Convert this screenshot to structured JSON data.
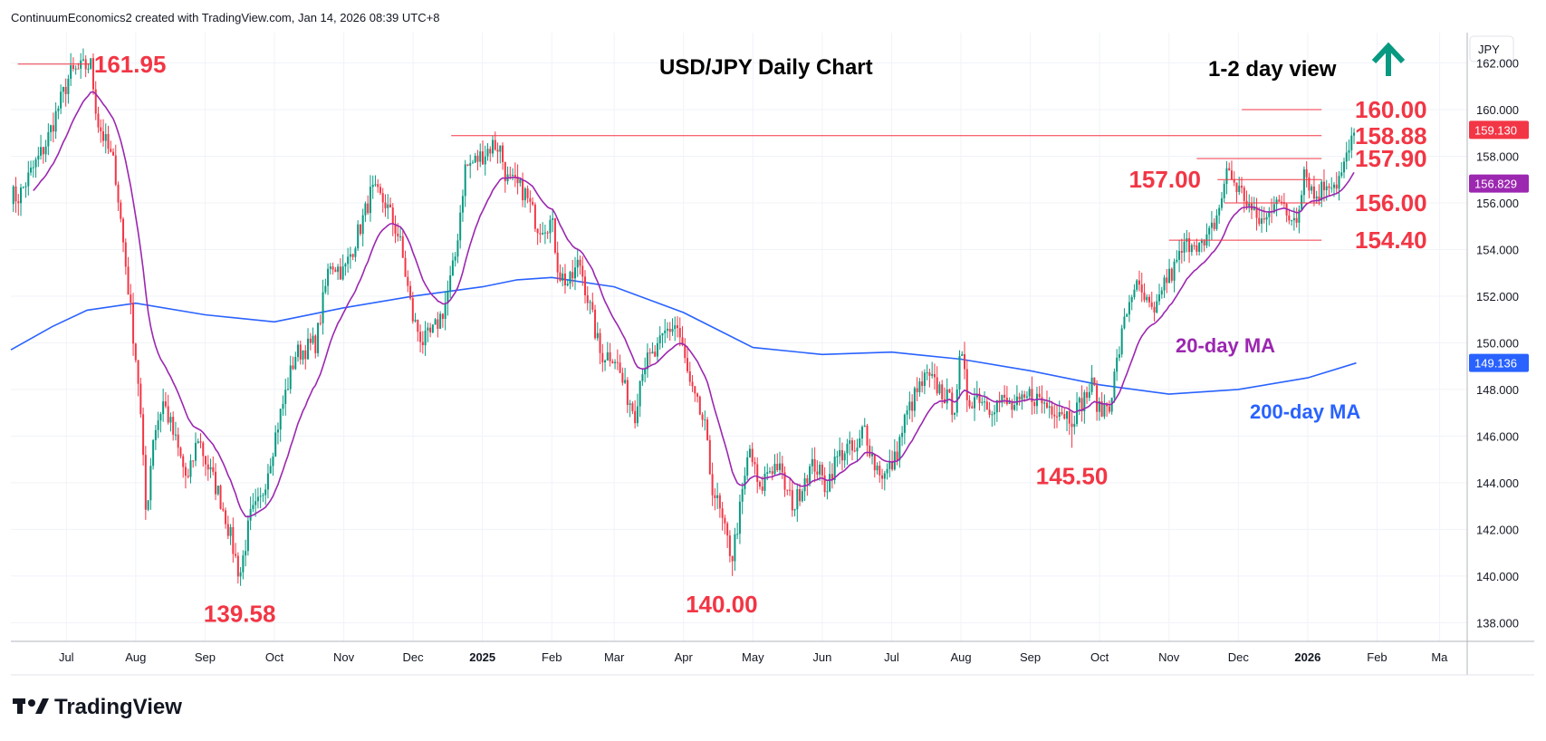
{
  "header": {
    "credit": "ContinuumEconomics2 created with TradingView.com, Jan 14, 2026 08:39 UTC+8"
  },
  "branding": {
    "logo_text": "TradingView"
  },
  "chart_data": {
    "type": "candlestick",
    "title": "USD/JPY Daily Chart",
    "subtitle": "1-2 day view",
    "view_direction": "up",
    "currency_label": "JPY",
    "y_ticks": [
      "162.000",
      "160.000",
      "158.000",
      "156.000",
      "154.000",
      "152.000",
      "150.000",
      "148.000",
      "146.000",
      "144.000",
      "142.000",
      "140.000",
      "138.000"
    ],
    "ylim": [
      137.2,
      163.3
    ],
    "x_ticks": [
      {
        "label": "Jul",
        "t": 0.7,
        "bold": false
      },
      {
        "label": "Aug",
        "t": 1.7,
        "bold": false
      },
      {
        "label": "Sep",
        "t": 2.7,
        "bold": false
      },
      {
        "label": "Oct",
        "t": 3.7,
        "bold": false
      },
      {
        "label": "Nov",
        "t": 4.7,
        "bold": false
      },
      {
        "label": "Dec",
        "t": 5.7,
        "bold": false
      },
      {
        "label": "2025",
        "t": 6.7,
        "bold": true
      },
      {
        "label": "Feb",
        "t": 7.7,
        "bold": false
      },
      {
        "label": "Mar",
        "t": 8.6,
        "bold": false
      },
      {
        "label": "Apr",
        "t": 9.6,
        "bold": false
      },
      {
        "label": "May",
        "t": 10.6,
        "bold": false
      },
      {
        "label": "Jun",
        "t": 11.6,
        "bold": false
      },
      {
        "label": "Jul",
        "t": 12.6,
        "bold": false
      },
      {
        "label": "Aug",
        "t": 13.6,
        "bold": false
      },
      {
        "label": "Sep",
        "t": 14.6,
        "bold": false
      },
      {
        "label": "Oct",
        "t": 15.6,
        "bold": false
      },
      {
        "label": "Nov",
        "t": 16.6,
        "bold": false
      },
      {
        "label": "Dec",
        "t": 17.6,
        "bold": false
      },
      {
        "label": "2026",
        "t": 18.6,
        "bold": true
      },
      {
        "label": "Feb",
        "t": 19.6,
        "bold": false
      },
      {
        "label": "Ma",
        "t": 20.5,
        "bold": false
      }
    ],
    "price_tags": [
      {
        "value": 159.13,
        "label": "159.130",
        "color": "#f23645"
      },
      {
        "value": 156.829,
        "label": "156.829",
        "color": "#9c27b0"
      },
      {
        "value": 149.136,
        "label": "149.136",
        "color": "#2962ff"
      }
    ],
    "levels": [
      {
        "value": 161.95,
        "label": "161.95",
        "t0": 0.0,
        "t1": 1.05
      },
      {
        "value": 160.0,
        "label": "160.00",
        "t0": 17.65,
        "t1": 18.8
      },
      {
        "value": 158.88,
        "label": "158.88",
        "t0": 6.25,
        "t1": 18.8
      },
      {
        "value": 157.9,
        "label": "157.90",
        "t0": 17.0,
        "t1": 18.8
      },
      {
        "value": 157.0,
        "label": "157.00",
        "t0": 17.3,
        "t1": 18.8
      },
      {
        "value": 156.0,
        "label": "156.00",
        "t0": 17.4,
        "t1": 18.8
      },
      {
        "value": 154.4,
        "label": "154.40",
        "t0": 16.6,
        "t1": 18.8
      }
    ],
    "lows": [
      {
        "value": 139.58,
        "label": "139.58",
        "t": 3.2
      },
      {
        "value": 140.0,
        "label": "140.00",
        "t": 10.15
      },
      {
        "value": 145.5,
        "label": "145.50",
        "t": 15.2
      }
    ],
    "anchors": [
      [
        -0.1,
        156.4
      ],
      [
        0.0,
        156.2
      ],
      [
        0.4,
        158.5
      ],
      [
        0.75,
        161.5
      ],
      [
        1.05,
        161.95
      ],
      [
        1.15,
        159.5
      ],
      [
        1.4,
        157.5
      ],
      [
        1.55,
        153.5
      ],
      [
        1.75,
        148
      ],
      [
        1.85,
        142.5
      ],
      [
        1.95,
        146
      ],
      [
        2.1,
        147.5
      ],
      [
        2.3,
        145.5
      ],
      [
        2.45,
        144
      ],
      [
        2.6,
        146
      ],
      [
        2.7,
        145
      ],
      [
        2.9,
        143.5
      ],
      [
        3.0,
        142.5
      ],
      [
        3.2,
        140.0
      ],
      [
        3.35,
        142.5
      ],
      [
        3.5,
        143.2
      ],
      [
        3.75,
        146.5
      ],
      [
        4.0,
        149.5
      ],
      [
        4.3,
        150
      ],
      [
        4.5,
        153.5
      ],
      [
        4.7,
        153
      ],
      [
        5.0,
        155.5
      ],
      [
        5.1,
        156.5
      ],
      [
        5.3,
        156
      ],
      [
        5.5,
        154.5
      ],
      [
        5.7,
        151
      ],
      [
        5.85,
        150
      ],
      [
        6.0,
        150.5
      ],
      [
        6.15,
        151.5
      ],
      [
        6.3,
        153.5
      ],
      [
        6.45,
        157.5
      ],
      [
        6.6,
        157.8
      ],
      [
        6.75,
        158.2
      ],
      [
        6.85,
        158.5
      ],
      [
        6.95,
        158.4
      ],
      [
        7.05,
        157
      ],
      [
        7.3,
        156.5
      ],
      [
        7.5,
        155
      ],
      [
        7.7,
        155.2
      ],
      [
        7.8,
        153
      ],
      [
        7.95,
        152.5
      ],
      [
        8.1,
        153.5
      ],
      [
        8.25,
        151.5
      ],
      [
        8.4,
        149.5
      ],
      [
        8.6,
        149.5
      ],
      [
        8.75,
        148
      ],
      [
        8.9,
        147
      ],
      [
        9.0,
        149
      ],
      [
        9.2,
        149.5
      ],
      [
        9.35,
        150.5
      ],
      [
        9.5,
        150.8
      ],
      [
        9.6,
        149.5
      ],
      [
        9.7,
        148
      ],
      [
        9.9,
        146.5
      ],
      [
        10.0,
        144
      ],
      [
        10.1,
        143
      ],
      [
        10.2,
        141.8
      ],
      [
        10.3,
        140.8
      ],
      [
        10.45,
        143.5
      ],
      [
        10.55,
        145.5
      ],
      [
        10.7,
        143.5
      ],
      [
        10.8,
        144.5
      ],
      [
        10.95,
        144.8
      ],
      [
        11.1,
        143.5
      ],
      [
        11.2,
        143
      ],
      [
        11.35,
        144.3
      ],
      [
        11.5,
        144.8
      ],
      [
        11.65,
        143.8
      ],
      [
        11.8,
        145
      ],
      [
        11.95,
        145.5
      ],
      [
        12.1,
        145.2
      ],
      [
        12.2,
        146.5
      ],
      [
        12.35,
        144.8
      ],
      [
        12.5,
        144.3
      ],
      [
        12.65,
        145
      ],
      [
        12.8,
        146.8
      ],
      [
        12.95,
        147.8
      ],
      [
        13.1,
        148.5
      ],
      [
        13.3,
        148
      ],
      [
        13.5,
        147.2
      ],
      [
        13.6,
        149.5
      ],
      [
        13.7,
        147.5
      ],
      [
        13.85,
        147.8
      ],
      [
        14.0,
        147.3
      ],
      [
        14.2,
        147.5
      ],
      [
        14.35,
        147.2
      ],
      [
        14.5,
        147.4
      ],
      [
        14.6,
        147.8
      ],
      [
        14.7,
        147.6
      ],
      [
        14.85,
        147.3
      ],
      [
        15.0,
        147.2
      ],
      [
        15.2,
        146.8
      ],
      [
        15.35,
        147.5
      ],
      [
        15.5,
        148.2
      ],
      [
        15.6,
        147
      ],
      [
        15.75,
        147.5
      ],
      [
        15.9,
        150
      ],
      [
        16.0,
        151.5
      ],
      [
        16.1,
        152.5
      ],
      [
        16.25,
        151.8
      ],
      [
        16.4,
        151
      ],
      [
        16.5,
        152.5
      ],
      [
        16.65,
        153
      ],
      [
        16.8,
        154
      ],
      [
        16.95,
        154.5
      ],
      [
        17.1,
        154
      ],
      [
        17.3,
        155.5
      ],
      [
        17.45,
        157.5
      ],
      [
        17.55,
        156.8
      ],
      [
        17.7,
        156.2
      ],
      [
        17.85,
        155.3
      ],
      [
        18.0,
        155.2
      ],
      [
        18.15,
        156.5
      ],
      [
        18.3,
        155.3
      ],
      [
        18.45,
        155.5
      ],
      [
        18.55,
        157.5
      ],
      [
        18.7,
        156.2
      ],
      [
        18.8,
        156.6
      ],
      [
        18.9,
        157
      ],
      [
        19.0,
        156.8
      ],
      [
        19.1,
        157.3
      ],
      [
        19.2,
        158.3
      ],
      [
        19.3,
        159.1
      ]
    ],
    "ma200_anchors": [
      [
        -0.1,
        149.7
      ],
      [
        0.5,
        150.7
      ],
      [
        1.0,
        151.4
      ],
      [
        1.7,
        151.7
      ],
      [
        2.7,
        151.2
      ],
      [
        3.7,
        150.9
      ],
      [
        4.7,
        151.5
      ],
      [
        5.7,
        152.0
      ],
      [
        6.7,
        152.4
      ],
      [
        7.2,
        152.7
      ],
      [
        7.7,
        152.8
      ],
      [
        8.6,
        152.4
      ],
      [
        9.6,
        151.3
      ],
      [
        10.6,
        149.8
      ],
      [
        11.6,
        149.5
      ],
      [
        12.6,
        149.6
      ],
      [
        13.6,
        149.3
      ],
      [
        14.6,
        148.8
      ],
      [
        15.6,
        148.2
      ],
      [
        16.6,
        147.8
      ],
      [
        17.6,
        148.0
      ],
      [
        18.6,
        148.5
      ],
      [
        19.3,
        149.136
      ]
    ]
  },
  "annotations": {
    "ma20_label": "20-day MA",
    "ma200_label": "200-day MA",
    "colors": {
      "up_candle": "#089981",
      "down_candle": "#f23645",
      "level_line": "#f23645",
      "ma20": "#9c27b0",
      "ma200": "#2962ff",
      "arrow": "#089981"
    }
  }
}
